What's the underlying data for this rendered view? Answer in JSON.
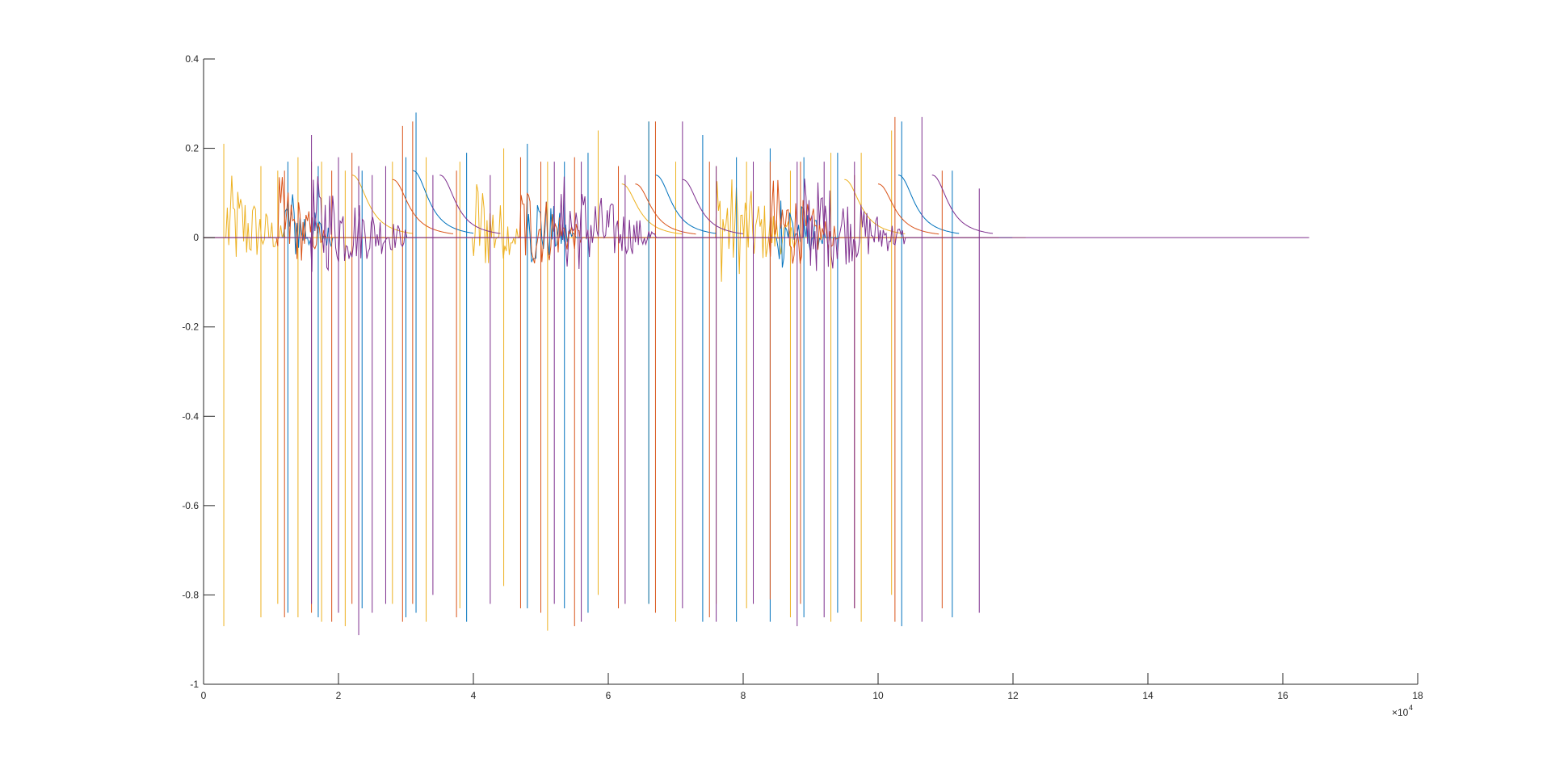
{
  "chart_data": {
    "type": "line",
    "title": "",
    "xlabel": "",
    "ylabel": "",
    "xlim": [
      0,
      180000
    ],
    "ylim": [
      -1,
      0.4
    ],
    "x_ticks": [
      0,
      20000,
      40000,
      60000,
      80000,
      100000,
      120000,
      140000,
      160000,
      180000
    ],
    "x_tick_labels": [
      "0",
      "2",
      "4",
      "6",
      "8",
      "10",
      "12",
      "14",
      "16",
      "18"
    ],
    "x_exponent": {
      "times": "×10",
      "power": "4"
    },
    "y_ticks": [
      -1,
      -0.8,
      -0.6,
      -0.4,
      -0.2,
      0,
      0.2,
      0.4
    ],
    "y_tick_labels": [
      "-1",
      "-0.8",
      "-0.6",
      "-0.4",
      "-0.2",
      "0",
      "0.2",
      "0.4"
    ],
    "grid": false,
    "legend": "none",
    "series": [
      {
        "color": "#EDB120",
        "baseline_x_range": [
          0,
          122000
        ],
        "noise_bursts": [
          [
            3500,
            12000,
            0.1
          ],
          [
            40000,
            47000,
            0.11
          ],
          [
            76000,
            88000,
            0.12
          ]
        ],
        "decay_humps": [
          [
            22000,
            0.14
          ],
          [
            62000,
            0.12
          ],
          [
            95000,
            0.13
          ]
        ],
        "spikes": [
          [
            3000,
            0.21,
            -0.87
          ],
          [
            8500,
            0.16,
            -0.85
          ],
          [
            11000,
            0.15,
            -0.82
          ],
          [
            14000,
            0.18,
            -0.85
          ],
          [
            17500,
            0.17,
            -0.86
          ],
          [
            21000,
            0.15,
            -0.87
          ],
          [
            28000,
            0.17,
            -0.82
          ],
          [
            33000,
            0.18,
            -0.86
          ],
          [
            38000,
            0.17,
            -0.83
          ],
          [
            44500,
            0.2,
            -0.78
          ],
          [
            51000,
            0.17,
            -0.88
          ],
          [
            58500,
            0.24,
            -0.8
          ],
          [
            66000,
            0.26,
            -0.82
          ],
          [
            70000,
            0.17,
            -0.86
          ],
          [
            76000,
            0.16,
            -0.82
          ],
          [
            80500,
            0.17,
            -0.83
          ],
          [
            87000,
            0.15,
            -0.85
          ],
          [
            93000,
            0.19,
            -0.86
          ],
          [
            97500,
            0.19,
            -0.86
          ],
          [
            102000,
            0.24,
            -0.8
          ]
        ]
      },
      {
        "color": "#0072BD",
        "baseline_x_range": [
          0,
          120000
        ],
        "noise_bursts": [
          [
            12000,
            19000,
            0.08
          ],
          [
            48000,
            55000,
            0.09
          ],
          [
            85000,
            92000,
            0.09
          ]
        ],
        "decay_humps": [
          [
            31000,
            0.15
          ],
          [
            67000,
            0.14
          ],
          [
            103000,
            0.14
          ]
        ],
        "spikes": [
          [
            12500,
            0.17,
            -0.84
          ],
          [
            17000,
            0.16,
            -0.85
          ],
          [
            23500,
            0.15,
            -0.83
          ],
          [
            30000,
            0.18,
            -0.85
          ],
          [
            31500,
            0.28,
            -0.84
          ],
          [
            39000,
            0.19,
            -0.86
          ],
          [
            48000,
            0.21,
            -0.83
          ],
          [
            53500,
            0.17,
            -0.83
          ],
          [
            57000,
            0.19,
            -0.84
          ],
          [
            66000,
            0.26,
            -0.82
          ],
          [
            74000,
            0.23,
            -0.86
          ],
          [
            79000,
            0.18,
            -0.86
          ],
          [
            84000,
            0.2,
            -0.86
          ],
          [
            89000,
            0.18,
            -0.85
          ],
          [
            94000,
            0.19,
            -0.84
          ],
          [
            103500,
            0.26,
            -0.87
          ],
          [
            111000,
            0.15,
            -0.85
          ]
        ]
      },
      {
        "color": "#D95319",
        "baseline_x_range": [
          0,
          118000
        ],
        "noise_bursts": [
          [
            11000,
            18000,
            0.1
          ],
          [
            47000,
            56000,
            0.1
          ],
          [
            84000,
            94000,
            0.1
          ]
        ],
        "decay_humps": [
          [
            28000,
            0.13
          ],
          [
            64000,
            0.12
          ],
          [
            100000,
            0.12
          ]
        ],
        "spikes": [
          [
            12000,
            0.15,
            -0.85
          ],
          [
            16000,
            0.17,
            -0.84
          ],
          [
            19000,
            0.15,
            -0.86
          ],
          [
            22000,
            0.19,
            -0.82
          ],
          [
            29500,
            0.25,
            -0.86
          ],
          [
            31000,
            0.26,
            -0.82
          ],
          [
            37500,
            0.15,
            -0.85
          ],
          [
            47000,
            0.18,
            -0.83
          ],
          [
            50000,
            0.17,
            -0.84
          ],
          [
            55000,
            0.18,
            -0.87
          ],
          [
            61500,
            0.16,
            -0.83
          ],
          [
            67000,
            0.26,
            -0.84
          ],
          [
            75000,
            0.17,
            -0.85
          ],
          [
            84000,
            0.17,
            -0.81
          ],
          [
            88500,
            0.17,
            -0.82
          ],
          [
            96500,
            0.14,
            -0.83
          ],
          [
            102500,
            0.27,
            -0.86
          ],
          [
            109500,
            0.15,
            -0.83
          ]
        ]
      },
      {
        "color": "#7E2F8E",
        "baseline_x_range": [
          0,
          164000
        ],
        "noise_bursts": [
          [
            16000,
            30000,
            0.1
          ],
          [
            53000,
            67000,
            0.1
          ],
          [
            89000,
            104000,
            0.1
          ]
        ],
        "decay_humps": [
          [
            35000,
            0.14
          ],
          [
            71000,
            0.13
          ],
          [
            108000,
            0.14
          ]
        ],
        "spikes": [
          [
            16000,
            0.23,
            -0.82
          ],
          [
            20000,
            0.18,
            -0.84
          ],
          [
            23000,
            0.16,
            -0.89
          ],
          [
            25000,
            0.14,
            -0.84
          ],
          [
            27000,
            0.16,
            -0.82
          ],
          [
            34000,
            0.14,
            -0.8
          ],
          [
            42500,
            0.14,
            -0.82
          ],
          [
            52000,
            0.17,
            -0.82
          ],
          [
            56000,
            0.17,
            -0.86
          ],
          [
            62500,
            0.14,
            -0.82
          ],
          [
            71000,
            0.26,
            -0.83
          ],
          [
            76000,
            0.16,
            -0.86
          ],
          [
            81500,
            0.17,
            -0.82
          ],
          [
            88000,
            0.17,
            -0.87
          ],
          [
            92000,
            0.17,
            -0.85
          ],
          [
            96500,
            0.17,
            -0.83
          ],
          [
            106500,
            0.27,
            -0.86
          ],
          [
            115000,
            0.11,
            -0.84
          ]
        ]
      }
    ]
  }
}
